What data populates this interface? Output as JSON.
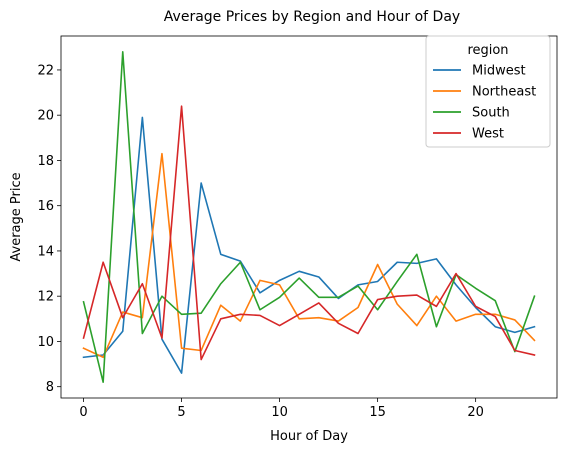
{
  "chart_data": {
    "type": "line",
    "title": "Average Prices by Region and Hour of Day",
    "xlabel": "Hour of Day",
    "ylabel": "Average Price",
    "xlim": [
      -1.15,
      24.15
    ],
    "ylim": [
      7.5,
      23.5
    ],
    "xticks": [
      0,
      5,
      10,
      15,
      20
    ],
    "yticks": [
      8,
      10,
      12,
      14,
      16,
      18,
      20,
      22
    ],
    "grid": false,
    "legend_title": "region",
    "legend_position": "top-right",
    "x": [
      0,
      1,
      2,
      3,
      4,
      5,
      6,
      7,
      8,
      9,
      10,
      11,
      12,
      13,
      14,
      15,
      16,
      17,
      18,
      19,
      20,
      21,
      22,
      23
    ],
    "series": [
      {
        "name": "Midwest",
        "color": "#1f77b4",
        "values": [
          9.3,
          9.4,
          10.45,
          19.9,
          10.1,
          8.6,
          17.0,
          13.85,
          13.55,
          12.15,
          12.7,
          13.1,
          12.85,
          11.9,
          12.5,
          12.65,
          13.5,
          13.45,
          13.65,
          12.5,
          11.5,
          10.65,
          10.4,
          10.65
        ]
      },
      {
        "name": "Northeast",
        "color": "#ff7f0e",
        "values": [
          9.7,
          9.3,
          11.3,
          11.05,
          18.3,
          9.7,
          9.6,
          11.6,
          10.9,
          12.7,
          12.5,
          11.0,
          11.05,
          10.9,
          11.5,
          13.4,
          11.65,
          10.7,
          12.0,
          10.9,
          11.2,
          11.2,
          10.95,
          10.05
        ]
      },
      {
        "name": "South",
        "color": "#2ca02c",
        "values": [
          11.75,
          8.2,
          22.8,
          10.35,
          12.0,
          11.2,
          11.25,
          12.55,
          13.5,
          11.4,
          11.95,
          12.8,
          11.95,
          11.95,
          12.45,
          11.4,
          12.65,
          13.85,
          10.65,
          12.95,
          12.35,
          11.8,
          9.55,
          12.0
        ]
      },
      {
        "name": "West",
        "color": "#d62728",
        "values": [
          10.15,
          13.5,
          11.05,
          12.55,
          10.15,
          20.4,
          9.2,
          11.0,
          11.2,
          11.15,
          10.7,
          11.2,
          11.7,
          10.8,
          10.35,
          11.85,
          12.0,
          12.05,
          11.55,
          13.0,
          11.55,
          11.1,
          9.6,
          9.4
        ]
      }
    ]
  }
}
